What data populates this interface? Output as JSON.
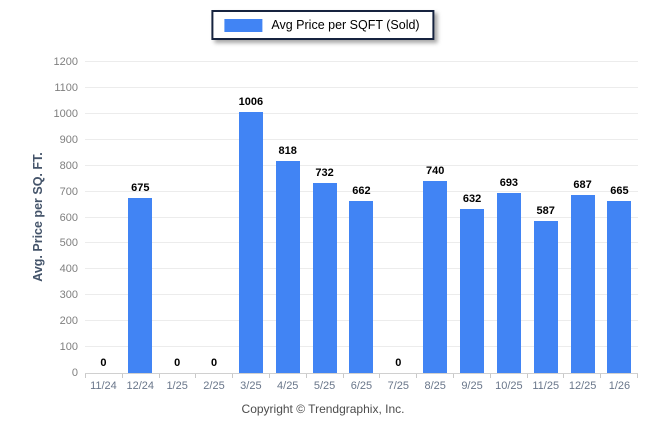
{
  "chart_data": {
    "type": "bar",
    "title": "",
    "legend": [
      "Avg Price per SQFT (Sold)"
    ],
    "ylabel": "Avg. Price per SQ. FT.",
    "xlabel": "",
    "categories": [
      "11/24",
      "12/24",
      "1/25",
      "2/25",
      "3/25",
      "4/25",
      "5/25",
      "6/25",
      "7/25",
      "8/25",
      "9/25",
      "10/25",
      "11/25",
      "12/25",
      "1/26"
    ],
    "values": [
      0,
      675,
      0,
      0,
      1006,
      818,
      732,
      662,
      0,
      740,
      632,
      693,
      587,
      687,
      665
    ],
    "ylim": [
      0,
      1200
    ],
    "ytick_step": 100,
    "grid": true,
    "legend_position": "top-center",
    "colors": {
      "bar": "#4184F4",
      "grid_line": "#ECECEC",
      "axis_line": "#D0D0D0",
      "y_tick_label": "#7F7F7F",
      "x_tick_label": "#69768A",
      "value_label": "#000000",
      "y_title": "#44546A",
      "legend_border": "#16233F"
    }
  },
  "footer": {
    "copyright": "Copyright © Trendgraphix, Inc."
  }
}
